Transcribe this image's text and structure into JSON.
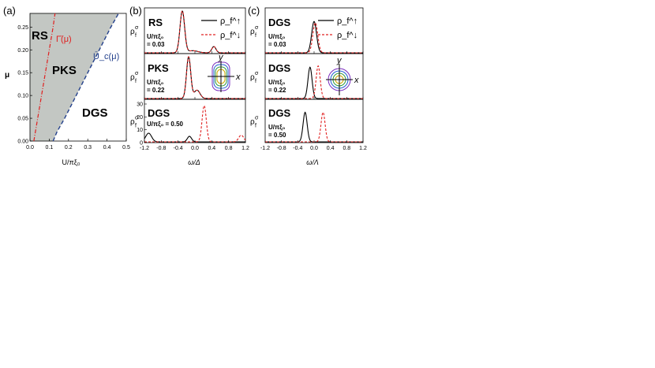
{
  "colors": {
    "shade": "#c3c7c3",
    "red": "#e02020",
    "blue": "#23408c",
    "black": "#000000",
    "ellipse_colors": [
      "#7b2fbf",
      "#1f5fd0",
      "#2e9a3a",
      "#d0a800"
    ]
  },
  "panel_labels": [
    "(a)",
    "(b)",
    "(c)"
  ],
  "chart_data": [
    {
      "id": "a",
      "type": "area",
      "xlabel": "U/πξ₀",
      "ylabel": "μ",
      "xlim": [
        0.0,
        0.5
      ],
      "ylim": [
        0.0,
        0.28
      ],
      "xticks": [
        "0.0",
        "0.1",
        "0.2",
        "0.3",
        "0.4",
        "0.5"
      ],
      "yticks": [
        "0.00",
        "0.05",
        "0.10",
        "0.15",
        "0.20",
        "0.25"
      ],
      "regions": [
        "RS",
        "PKS",
        "DGS"
      ],
      "series": [
        {
          "name": "Γ̄(μ)",
          "style": "dash-dot",
          "color": "red",
          "points": [
            [
              0.02,
              0.0
            ],
            [
              0.04,
              0.05
            ],
            [
              0.06,
              0.1
            ],
            [
              0.08,
              0.15
            ],
            [
              0.1,
              0.2
            ],
            [
              0.12,
              0.25
            ],
            [
              0.13,
              0.28
            ]
          ]
        },
        {
          "name": "Ū_c(μ)",
          "style": "dashed",
          "color": "blue",
          "points": [
            [
              0.12,
              0.0
            ],
            [
              0.14,
              0.02
            ],
            [
              0.18,
              0.05
            ],
            [
              0.24,
              0.1
            ],
            [
              0.3,
              0.15
            ],
            [
              0.36,
              0.2
            ],
            [
              0.42,
              0.25
            ],
            [
              0.46,
              0.28
            ]
          ]
        }
      ]
    },
    {
      "id": "b",
      "type": "line",
      "xlabel": "ω/Δ",
      "xlim": [
        -1.2,
        1.2
      ],
      "xticks": [
        "-1.2",
        "-0.8",
        "-0.4",
        "0.0",
        "0.4",
        "0.8",
        "1.2"
      ],
      "legend": [
        "ρ_f^↑",
        "ρ_f^↓"
      ],
      "subpanels": [
        {
          "label": "RS",
          "u_label": "U/πξ₀",
          "u_value": "= 0.03",
          "up": [
            {
              "c": -0.3,
              "w": 0.055,
              "a": 1.0
            },
            {
              "c": 0.45,
              "w": 0.05,
              "a": 0.15
            },
            {
              "c": -0.05,
              "w": 0.12,
              "a": 0.05
            }
          ],
          "down": [
            {
              "c": -0.3,
              "w": 0.055,
              "a": 1.0
            },
            {
              "c": 0.45,
              "w": 0.05,
              "a": 0.15
            },
            {
              "c": -0.05,
              "w": 0.12,
              "a": 0.05
            }
          ]
        },
        {
          "label": "PKS",
          "u_label": "U/πξ₀",
          "u_value": "= 0.22",
          "up": [
            {
              "c": -0.15,
              "w": 0.05,
              "a": 1.0
            },
            {
              "c": 0.05,
              "w": 0.07,
              "a": 0.2
            }
          ],
          "down": [
            {
              "c": -0.15,
              "w": 0.05,
              "a": 1.0
            },
            {
              "c": 0.05,
              "w": 0.07,
              "a": 0.2
            }
          ]
        },
        {
          "label": "DGS",
          "u_label": "U/πξ₀ = 0.50",
          "u_value": "",
          "yticks": [
            "0",
            "10",
            "20",
            "30"
          ],
          "up": [
            {
              "c": -1.1,
              "w": 0.07,
              "a": 0.22
            },
            {
              "c": -0.13,
              "w": 0.05,
              "a": 0.14
            }
          ],
          "down": [
            {
              "c": 0.22,
              "w": 0.05,
              "a": 0.92
            },
            {
              "c": 1.1,
              "w": 0.06,
              "a": 0.17
            }
          ]
        }
      ]
    },
    {
      "id": "c",
      "type": "line",
      "xlabel": "ω/Λ",
      "xlim": [
        -1.2,
        1.2
      ],
      "xticks": [
        "-1.2",
        "-0.8",
        "-0.4",
        "0.0",
        "0.4",
        "0.8",
        "1.2"
      ],
      "legend": [
        "ρ_f^↑",
        "ρ_f^↓"
      ],
      "subpanels": [
        {
          "label": "DGS",
          "u_label": "U/πξ₀",
          "u_value": "= 0.03",
          "up": [
            {
              "c": 0.0,
              "w": 0.06,
              "a": 0.75
            }
          ],
          "down": [
            {
              "c": 0.03,
              "w": 0.06,
              "a": 0.72
            }
          ]
        },
        {
          "label": "DGS",
          "u_label": "U/πξ₀",
          "u_value": "= 0.22",
          "up": [
            {
              "c": -0.1,
              "w": 0.05,
              "a": 0.75
            }
          ],
          "down": [
            {
              "c": 0.1,
              "w": 0.05,
              "a": 0.78
            }
          ]
        },
        {
          "label": "DGS",
          "u_label": "U/πξ₀",
          "u_value": "= 0.50",
          "up": [
            {
              "c": -0.22,
              "w": 0.05,
              "a": 0.75
            }
          ],
          "down": [
            {
              "c": 0.22,
              "w": 0.05,
              "a": 0.75
            }
          ]
        }
      ]
    }
  ],
  "inset_labels": {
    "x": "x",
    "y": "y"
  },
  "ylabel_rho": "ρ",
  "ylabel_sup": "σ",
  "ylabel_sub": "f"
}
